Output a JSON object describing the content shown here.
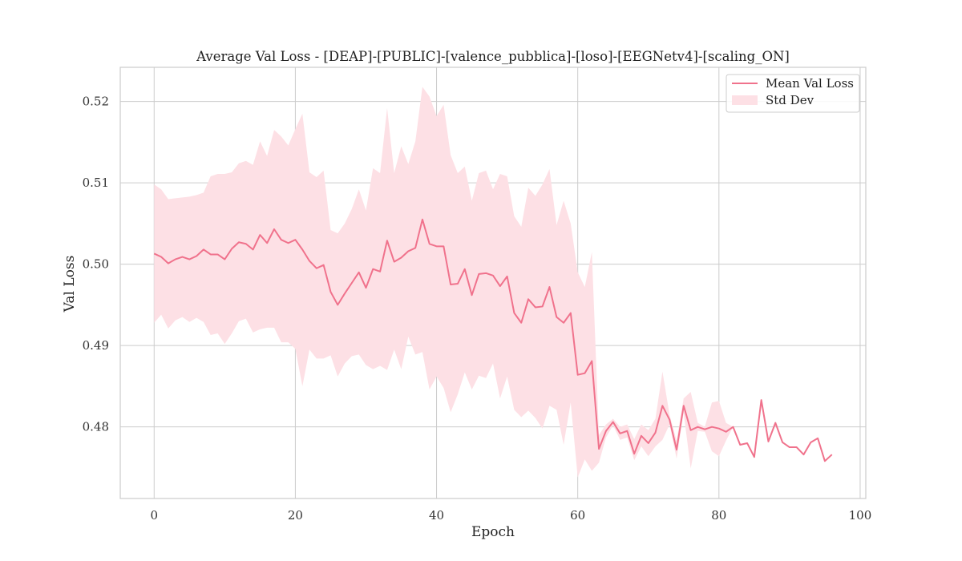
{
  "chart_data": {
    "type": "line",
    "title": "Average Val Loss - [DEAP]-[PUBLIC]-[valence_pubblica]-[loso]-[EEGNetv4]-[scaling_ON]",
    "xlabel": "Epoch",
    "ylabel": "Val Loss",
    "xlim": [
      -4.8,
      100.8
    ],
    "ylim": [
      0.4712,
      0.5242
    ],
    "xticks": [
      0,
      20,
      40,
      60,
      80,
      100
    ],
    "yticks": [
      0.48,
      0.49,
      0.5,
      0.51,
      0.52
    ],
    "xtick_labels": [
      "0",
      "20",
      "40",
      "60",
      "80",
      "100"
    ],
    "ytick_labels": [
      "0.48",
      "0.49",
      "0.50",
      "0.51",
      "0.52"
    ],
    "grid": true,
    "legend": {
      "position": "top-right",
      "entries": [
        "Mean Val Loss",
        "Std Dev"
      ]
    },
    "colors": {
      "line": "#f0728c",
      "band": "#fde0e5",
      "grid": "#cccccc",
      "spine": "#cccccc"
    },
    "x": [
      0,
      1,
      2,
      3,
      4,
      5,
      6,
      7,
      8,
      9,
      10,
      11,
      12,
      13,
      14,
      15,
      16,
      17,
      18,
      19,
      20,
      21,
      22,
      23,
      24,
      25,
      26,
      27,
      28,
      29,
      30,
      31,
      32,
      33,
      34,
      35,
      36,
      37,
      38,
      39,
      40,
      41,
      42,
      43,
      44,
      45,
      46,
      47,
      48,
      49,
      50,
      51,
      52,
      53,
      54,
      55,
      56,
      57,
      58,
      59,
      60,
      61,
      62,
      63,
      64,
      65,
      66,
      67,
      68,
      69,
      70,
      71,
      72,
      73,
      74,
      75,
      76,
      77,
      78,
      79,
      80,
      81,
      82,
      83,
      84,
      85,
      86,
      87,
      88,
      89,
      90,
      91,
      92,
      93,
      94,
      95,
      96
    ],
    "series": [
      {
        "name": "Mean Val Loss",
        "values": [
          0.5013,
          0.5009,
          0.5001,
          0.5006,
          0.5009,
          0.5006,
          0.501,
          0.5018,
          0.5012,
          0.5012,
          0.5006,
          0.5019,
          0.5027,
          0.5025,
          0.5018,
          0.5036,
          0.5026,
          0.5043,
          0.503,
          0.5026,
          0.503,
          0.5018,
          0.5004,
          0.4995,
          0.4999,
          0.4966,
          0.495,
          0.4964,
          0.4977,
          0.499,
          0.4971,
          0.4994,
          0.4991,
          0.5029,
          0.5003,
          0.5008,
          0.5016,
          0.502,
          0.5055,
          0.5025,
          0.5022,
          0.5022,
          0.4975,
          0.4976,
          0.4994,
          0.4962,
          0.4988,
          0.4989,
          0.4986,
          0.4973,
          0.4985,
          0.494,
          0.4928,
          0.4957,
          0.4947,
          0.4948,
          0.4972,
          0.4935,
          0.4928,
          0.494,
          0.4864,
          0.4866,
          0.4881,
          0.4773,
          0.4795,
          0.4806,
          0.4792,
          0.4795,
          0.4767,
          0.4789,
          0.478,
          0.4793,
          0.4826,
          0.4809,
          0.4772,
          0.4826,
          0.4796,
          0.48,
          0.4797,
          0.48,
          0.4798,
          0.4794,
          0.48,
          0.4778,
          0.478,
          0.4763,
          0.4833,
          0.4782,
          0.4805,
          0.4781,
          0.4775,
          0.4775,
          0.4766,
          0.4781,
          0.4786,
          0.4758,
          0.4766
        ]
      },
      {
        "name": "Std Dev",
        "upper": [
          0.5098,
          0.5092,
          0.508,
          0.5081,
          0.5082,
          0.5083,
          0.5085,
          0.5088,
          0.5108,
          0.5111,
          0.5111,
          0.5113,
          0.5124,
          0.5127,
          0.5122,
          0.5151,
          0.5133,
          0.5165,
          0.5157,
          0.5146,
          0.5166,
          0.5185,
          0.5113,
          0.5107,
          0.5115,
          0.5042,
          0.5038,
          0.505,
          0.5068,
          0.5092,
          0.5066,
          0.5118,
          0.5112,
          0.5192,
          0.5112,
          0.5145,
          0.5123,
          0.5151,
          0.5218,
          0.5206,
          0.5182,
          0.5196,
          0.5134,
          0.5112,
          0.512,
          0.5078,
          0.5112,
          0.5115,
          0.5092,
          0.5111,
          0.5108,
          0.5059,
          0.5046,
          0.5094,
          0.5084,
          0.5098,
          0.5117,
          0.5048,
          0.5078,
          0.505,
          0.499,
          0.4972,
          0.5015,
          0.479,
          0.4803,
          0.481,
          0.48,
          0.4803,
          0.4785,
          0.4803,
          0.4796,
          0.481,
          0.4868,
          0.4815,
          0.4783,
          0.4835,
          0.4843,
          0.4805,
          0.48,
          0.483,
          0.4832,
          0.4805,
          0.48,
          0.4778,
          0.478,
          0.4763,
          0.4833,
          0.4782,
          0.4805,
          0.4781,
          0.4775,
          0.4775,
          0.4766,
          0.4781,
          0.4786,
          0.4758,
          0.4766
        ],
        "lower": [
          0.4928,
          0.4938,
          0.4921,
          0.4931,
          0.4935,
          0.4929,
          0.4934,
          0.4929,
          0.4913,
          0.4915,
          0.4902,
          0.4915,
          0.493,
          0.4933,
          0.4916,
          0.492,
          0.4922,
          0.4922,
          0.4904,
          0.4904,
          0.4896,
          0.485,
          0.4895,
          0.4884,
          0.4884,
          0.4888,
          0.4862,
          0.4878,
          0.4887,
          0.4889,
          0.4876,
          0.4871,
          0.4875,
          0.487,
          0.4895,
          0.4871,
          0.4911,
          0.4889,
          0.4892,
          0.4846,
          0.4862,
          0.4848,
          0.4818,
          0.484,
          0.4867,
          0.4846,
          0.4863,
          0.486,
          0.4878,
          0.4835,
          0.4862,
          0.4821,
          0.4812,
          0.482,
          0.4811,
          0.4798,
          0.4826,
          0.4821,
          0.4778,
          0.483,
          0.4738,
          0.476,
          0.4746,
          0.4756,
          0.4787,
          0.4802,
          0.4784,
          0.4787,
          0.4759,
          0.4776,
          0.4764,
          0.4776,
          0.4784,
          0.4803,
          0.4761,
          0.4817,
          0.4749,
          0.4795,
          0.4794,
          0.477,
          0.4764,
          0.4783,
          0.48,
          0.4778,
          0.478,
          0.4763,
          0.4833,
          0.4782,
          0.4805,
          0.4781,
          0.4775,
          0.4775,
          0.4766,
          0.4781,
          0.4786,
          0.4758,
          0.4766
        ]
      }
    ]
  }
}
